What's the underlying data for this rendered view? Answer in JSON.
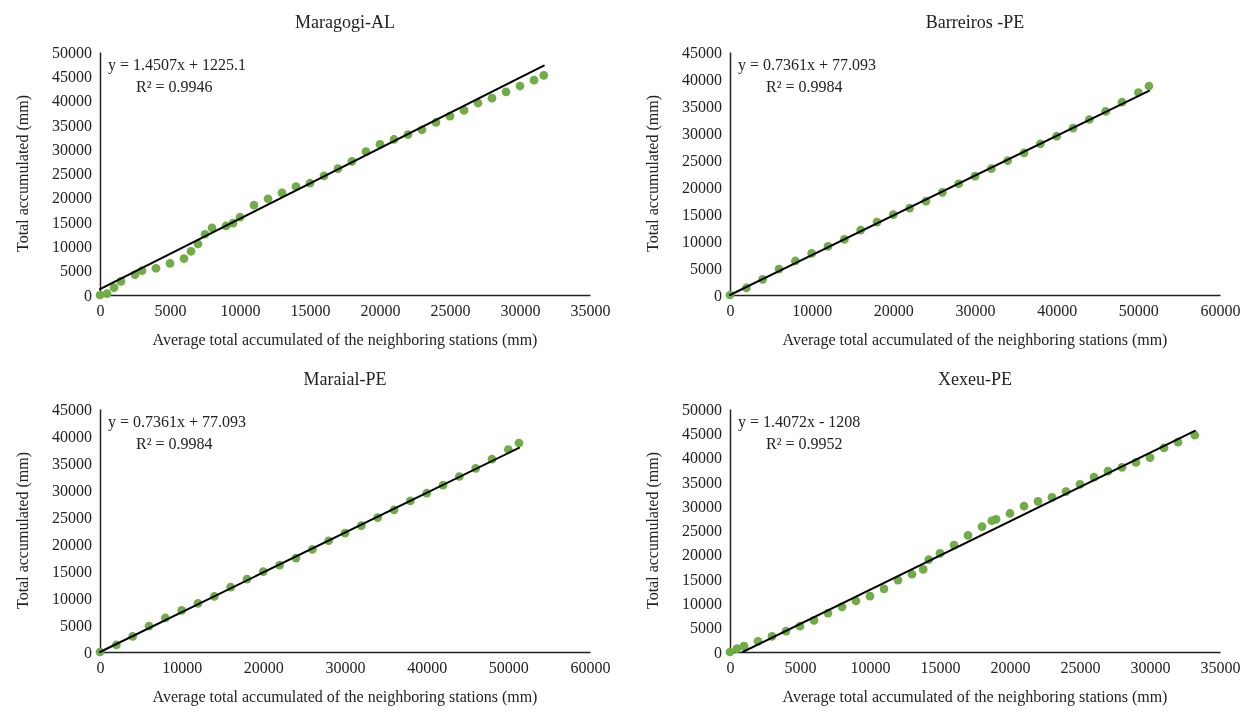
{
  "chart_data": [
    {
      "type": "scatter",
      "title": "Maragogi-AL",
      "xlabel": "Average total accumulated of the neighboring stations (mm)",
      "ylabel": "Total accumulated (mm)",
      "xlim": [
        0,
        35000
      ],
      "xticks": [
        0,
        5000,
        10000,
        15000,
        20000,
        25000,
        30000,
        35000
      ],
      "ylim": [
        0,
        50000
      ],
      "yticks": [
        0,
        5000,
        10000,
        15000,
        20000,
        25000,
        30000,
        35000,
        40000,
        45000,
        50000
      ],
      "annotations": [
        "y = 1.4507x + 1225.1",
        "R² = 0.9946"
      ],
      "series": [
        {
          "color": "#70ad47",
          "marker": "circle",
          "x": [
            0,
            500,
            1000,
            1500,
            2500,
            3000,
            4000,
            5000,
            6000,
            6500,
            7000,
            7500,
            8000,
            9000,
            9500,
            10000,
            11000,
            12000,
            13000,
            14000,
            15000,
            16000,
            17000,
            18000,
            19000,
            20000,
            21000,
            22000,
            23000,
            24000,
            25000,
            26000,
            27000,
            28000,
            29000,
            30000,
            31000,
            31700
          ],
          "values": [
            0,
            300,
            1500,
            2800,
            4200,
            5000,
            5500,
            6500,
            7500,
            9000,
            10500,
            12500,
            13800,
            14200,
            14800,
            16000,
            18500,
            19800,
            21000,
            22300,
            23000,
            24500,
            26000,
            27500,
            29500,
            31000,
            32000,
            33000,
            34000,
            35500,
            36800,
            38000,
            39500,
            40500,
            41800,
            43000,
            44200,
            45200
          ]
        },
        {
          "type": "line",
          "color": "#000000",
          "marker": "none",
          "x": [
            0,
            31700
          ],
          "values": [
            1200,
            47200
          ]
        }
      ]
    },
    {
      "type": "scatter",
      "title": "Barreiros -PE",
      "xlabel": "Average total accumulated of the neighboring stations (mm)",
      "ylabel": "Total accumulated (mm)",
      "xlim": [
        0,
        60000
      ],
      "xticks": [
        0,
        10000,
        20000,
        30000,
        40000,
        50000,
        60000
      ],
      "ylim": [
        0,
        45000
      ],
      "yticks": [
        0,
        5000,
        10000,
        15000,
        20000,
        25000,
        30000,
        35000,
        40000,
        45000
      ],
      "annotations": [
        "y = 0.7361x  + 77.093",
        "R² = 0.9984"
      ],
      "series": [
        {
          "color": "#70ad47",
          "marker": "circle",
          "x": [
            0,
            2000,
            4000,
            6000,
            8000,
            10000,
            12000,
            14000,
            16000,
            18000,
            20000,
            22000,
            24000,
            26000,
            28000,
            30000,
            32000,
            34000,
            36000,
            38000,
            40000,
            42000,
            44000,
            46000,
            48000,
            50000,
            51300
          ],
          "values": [
            0,
            1300,
            2900,
            4800,
            6300,
            7700,
            9000,
            10300,
            12000,
            13500,
            14900,
            16100,
            17400,
            19000,
            20600,
            22000,
            23400,
            24900,
            26300,
            28000,
            29400,
            30900,
            32500,
            34000,
            35700,
            37500,
            38700
          ]
        },
        {
          "type": "line",
          "color": "#000000",
          "marker": "none",
          "x": [
            0,
            51300
          ],
          "values": [
            0,
            37800
          ]
        }
      ]
    },
    {
      "type": "scatter",
      "title": "Maraial-PE",
      "xlabel": "Average total accumulated of the neighboring stations (mm)",
      "ylabel": "Total accumulated (mm)",
      "xlim": [
        0,
        60000
      ],
      "xticks": [
        0,
        10000,
        20000,
        30000,
        40000,
        50000,
        60000
      ],
      "ylim": [
        0,
        45000
      ],
      "yticks": [
        0,
        5000,
        10000,
        15000,
        20000,
        25000,
        30000,
        35000,
        40000,
        45000
      ],
      "annotations": [
        "y = 0.7361x  + 77.093",
        "R² = 0.9984"
      ],
      "series": [
        {
          "color": "#70ad47",
          "marker": "circle",
          "x": [
            0,
            2000,
            4000,
            6000,
            8000,
            10000,
            12000,
            14000,
            16000,
            18000,
            20000,
            22000,
            24000,
            26000,
            28000,
            30000,
            32000,
            34000,
            36000,
            38000,
            40000,
            42000,
            44000,
            46000,
            48000,
            50000,
            51300
          ],
          "values": [
            0,
            1300,
            2900,
            4800,
            6300,
            7700,
            9000,
            10300,
            12000,
            13500,
            14900,
            16100,
            17400,
            19000,
            20600,
            22000,
            23400,
            24900,
            26300,
            28000,
            29400,
            30900,
            32500,
            34000,
            35700,
            37500,
            38700
          ]
        },
        {
          "type": "line",
          "color": "#000000",
          "marker": "none",
          "x": [
            0,
            51300
          ],
          "values": [
            0,
            37800
          ]
        }
      ]
    },
    {
      "type": "scatter",
      "title": "Xexeu-PE",
      "xlabel": "Average total accumulated of the neighboring stations (mm)",
      "ylabel": "Total accumulated (mm)",
      "xlim": [
        0,
        35000
      ],
      "xticks": [
        0,
        5000,
        10000,
        15000,
        20000,
        25000,
        30000,
        35000
      ],
      "ylim": [
        0,
        50000
      ],
      "yticks": [
        0,
        5000,
        10000,
        15000,
        20000,
        25000,
        30000,
        35000,
        40000,
        45000,
        50000
      ],
      "annotations": [
        "y = 1.4072x  - 1208",
        "R² = 0.9952"
      ],
      "series": [
        {
          "color": "#70ad47",
          "marker": "circle",
          "x": [
            0,
            500,
            1000,
            2000,
            3000,
            4000,
            5000,
            6000,
            7000,
            8000,
            9000,
            10000,
            11000,
            12000,
            13000,
            13800,
            14200,
            15000,
            16000,
            17000,
            18000,
            18700,
            19000,
            20000,
            21000,
            22000,
            23000,
            24000,
            25000,
            26000,
            27000,
            28000,
            29000,
            30000,
            31000,
            32000,
            33200
          ],
          "values": [
            0,
            700,
            1200,
            2200,
            3200,
            4300,
            5300,
            6500,
            8000,
            9300,
            10500,
            11500,
            13000,
            14800,
            16000,
            17000,
            19000,
            20300,
            22000,
            24000,
            25800,
            27000,
            27300,
            28500,
            30000,
            31000,
            31800,
            33000,
            34500,
            36000,
            37200,
            38000,
            39000,
            40000,
            42000,
            43200,
            44600
          ]
        },
        {
          "type": "line",
          "color": "#000000",
          "marker": "none",
          "x": [
            900,
            33200
          ],
          "values": [
            0,
            45500
          ]
        }
      ]
    }
  ]
}
